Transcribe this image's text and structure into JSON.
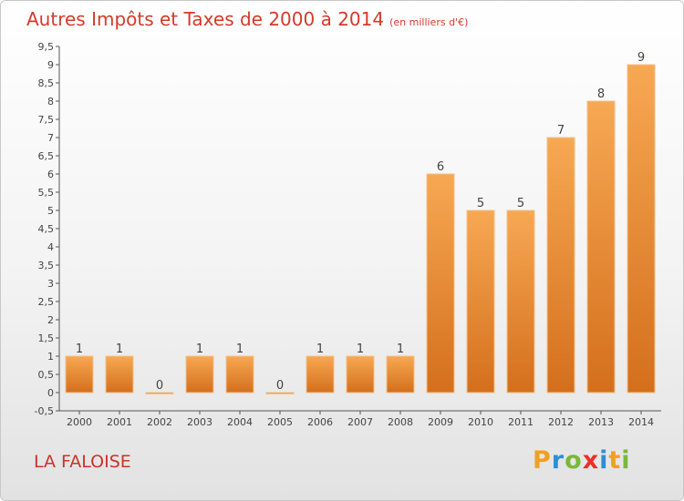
{
  "title": "Autres Impôts et Taxes de 2000 à 2014",
  "unit_label": "(en milliers d'€)",
  "commune": "LA FALOISE",
  "logo": {
    "letters": [
      "P",
      "r",
      "o",
      "x",
      "i",
      "t",
      "i"
    ],
    "colors": [
      "#f0a020",
      "#2c8fd6",
      "#7ab83a",
      "#e8302a",
      "#2c8fd6",
      "#f0a020",
      "#7ab83a"
    ]
  },
  "chart_data": {
    "type": "bar",
    "categories": [
      "2000",
      "2001",
      "2002",
      "2003",
      "2004",
      "2005",
      "2006",
      "2007",
      "2008",
      "2009",
      "2010",
      "2011",
      "2012",
      "2013",
      "2014"
    ],
    "values": [
      1,
      1,
      0,
      1,
      1,
      0,
      1,
      1,
      1,
      6,
      5,
      5,
      7,
      8,
      9
    ],
    "data_labels": [
      "1",
      "1",
      "0",
      "1",
      "1",
      "0",
      "1",
      "1",
      "1",
      "6",
      "5",
      "5",
      "7",
      "8",
      "9"
    ],
    "yticks": [
      "-0,5",
      "0",
      "0,5",
      "1",
      "1,5",
      "2",
      "2,5",
      "3",
      "3,5",
      "4",
      "4,5",
      "5",
      "5,5",
      "6",
      "6,5",
      "7",
      "7,5",
      "8",
      "8,5",
      "9",
      "9,5"
    ],
    "ylim": [
      -0.5,
      9.5
    ],
    "grid": false,
    "bar_color": "#f09a3c"
  }
}
